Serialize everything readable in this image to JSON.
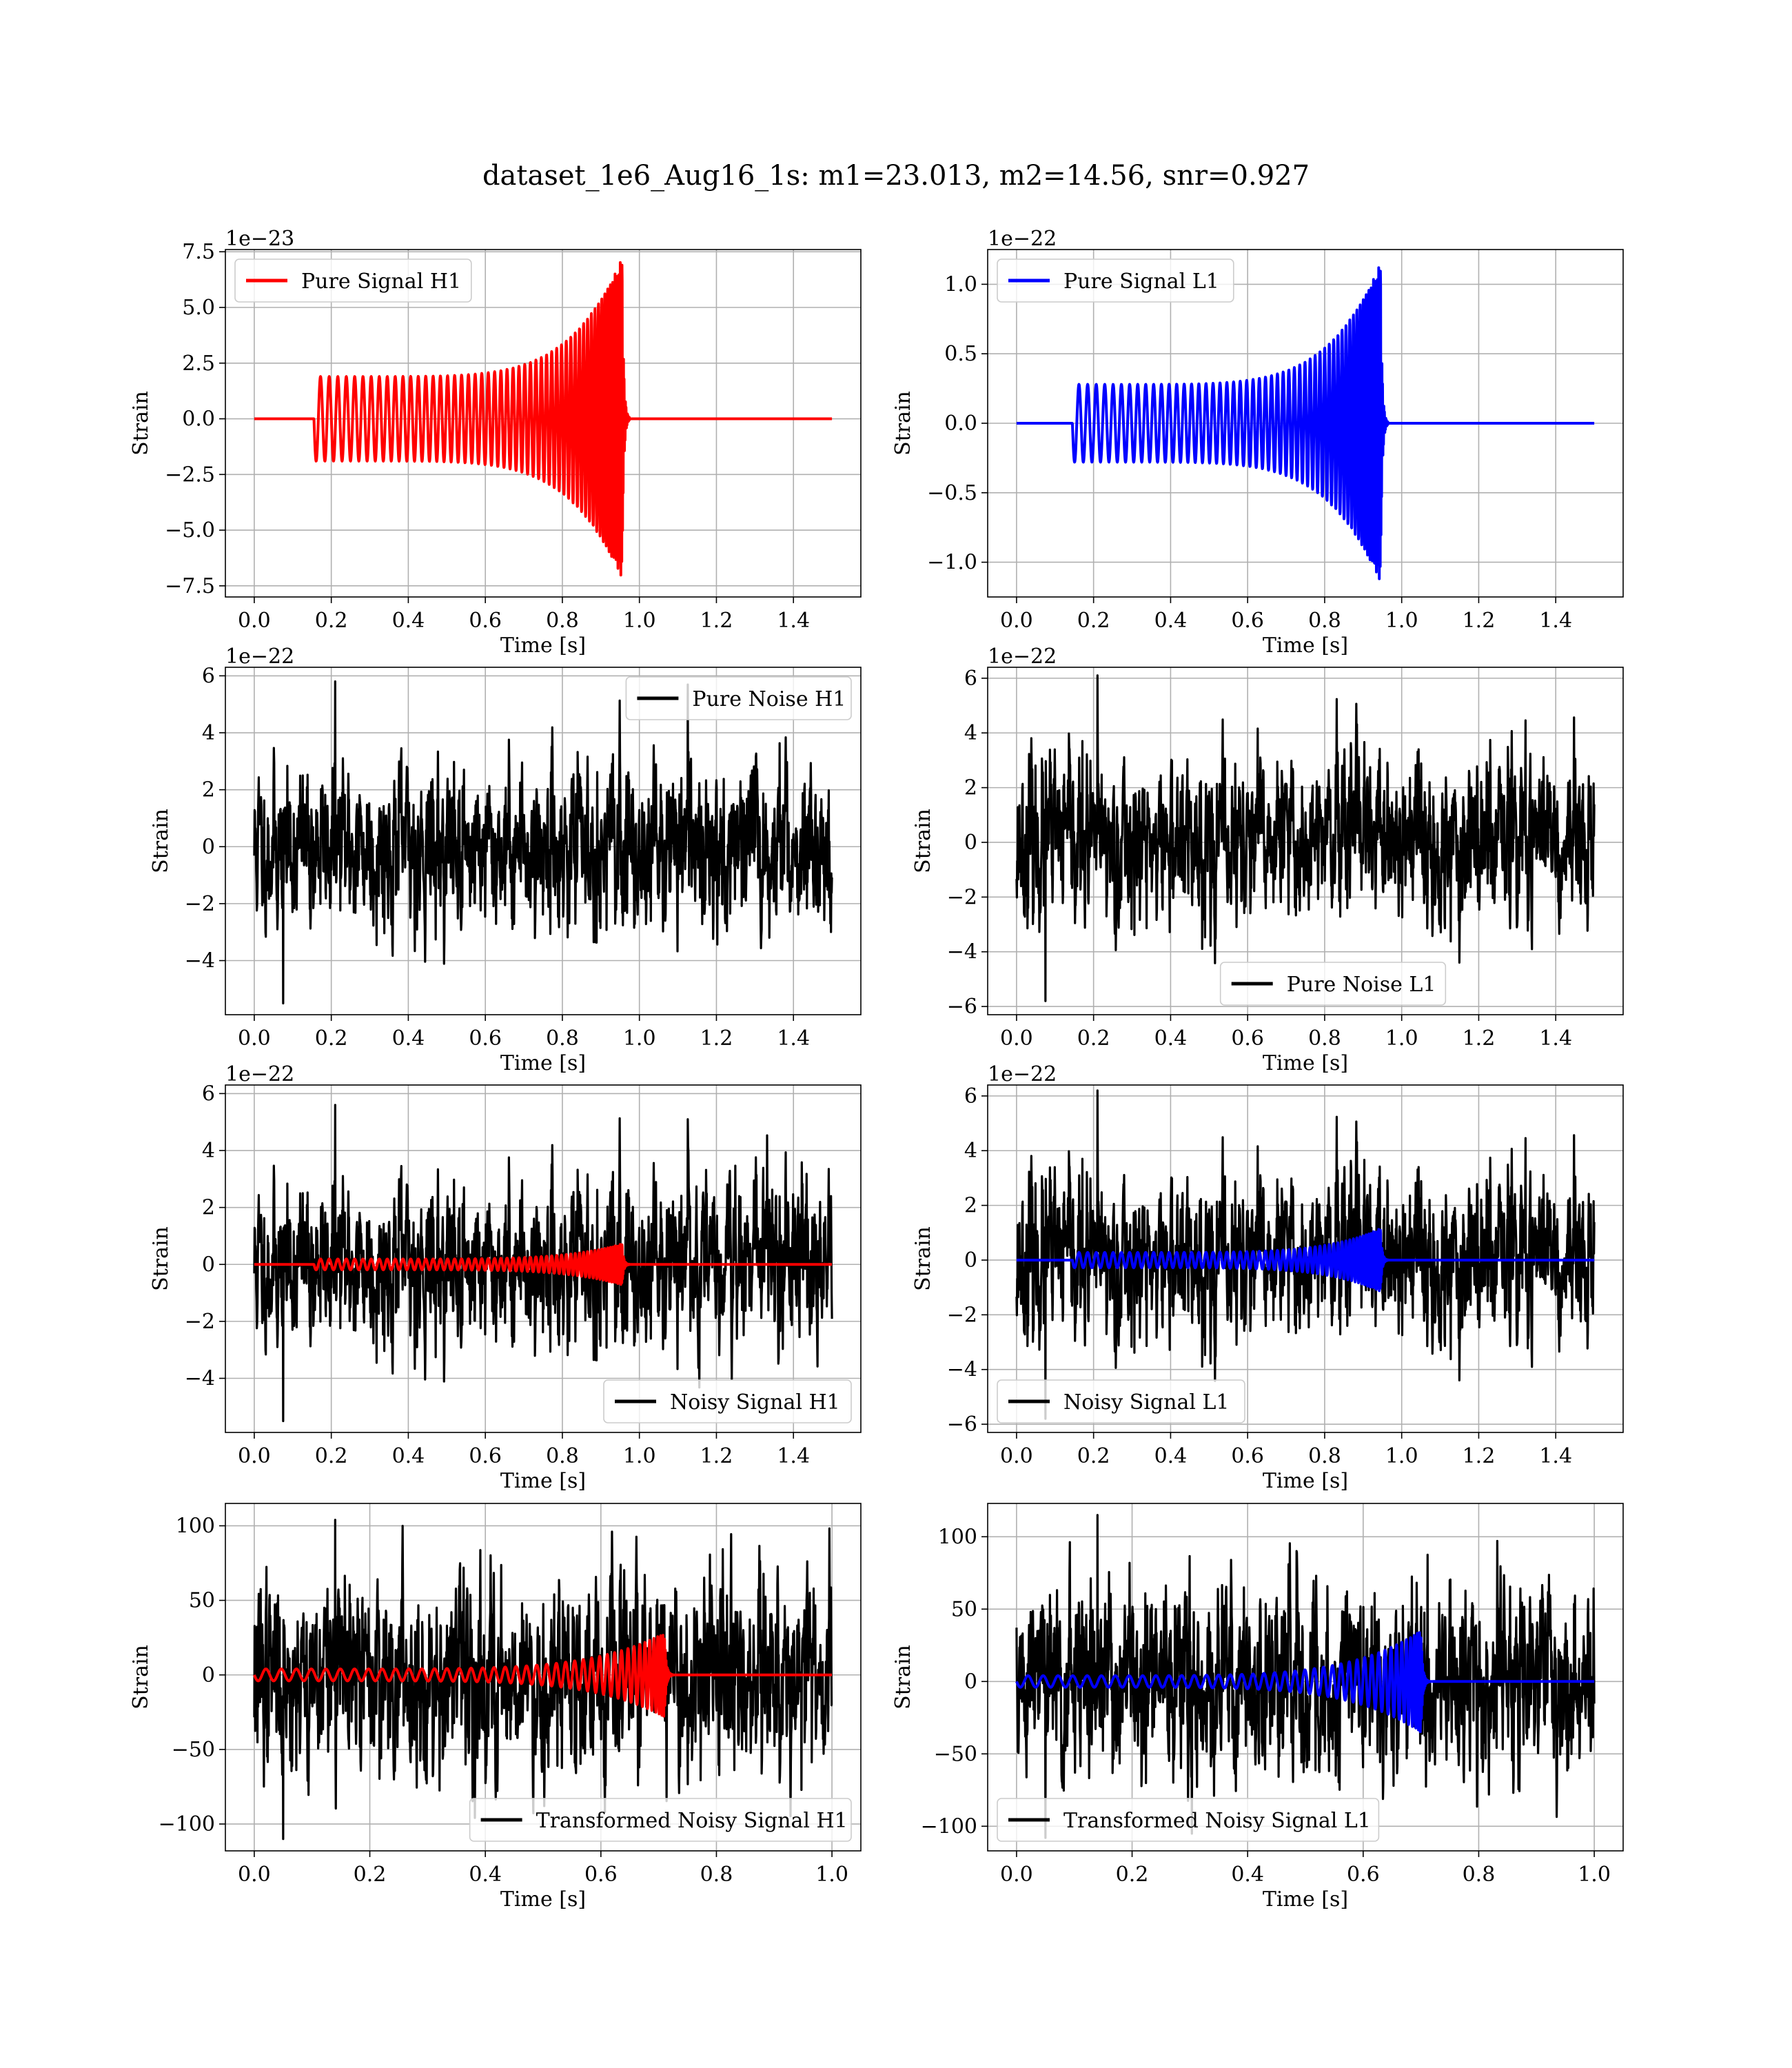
{
  "figure": {
    "suptitle": "dataset_1e6_Aug16_1s: m1=23.013, m2=14.56, snr=0.927"
  },
  "chart_data": [
    {
      "id": "pure-signal-h1",
      "type": "line",
      "kind": "signal",
      "detector": "H1",
      "xlabel": "Time [s]",
      "ylabel": "Strain",
      "offset_text": "1e−23",
      "xlim": [
        -0.075,
        1.575
      ],
      "ylim": [
        -8.0,
        7.6
      ],
      "xticks": [
        0.0,
        0.2,
        0.4,
        0.6,
        0.8,
        1.0,
        1.2,
        1.4
      ],
      "xtick_labels": [
        "0.0",
        "0.2",
        "0.4",
        "0.6",
        "0.8",
        "1.0",
        "1.2",
        "1.4"
      ],
      "yticks": [
        -7.5,
        -5.0,
        -2.5,
        0.0,
        2.5,
        5.0,
        7.5
      ],
      "ytick_labels": [
        "−7.5",
        "−5.0",
        "−2.5",
        "0.0",
        "2.5",
        "5.0",
        "7.5"
      ],
      "grid": true,
      "legend_position": "upper-left",
      "signal": {
        "start": 0.155,
        "merge": 0.955,
        "end_ringdown": 0.975,
        "amp_start": 1.9,
        "amp_peak": 7.2,
        "cycles": 56
      },
      "series": [
        {
          "name": "Pure Signal H1",
          "color": "#ff0000",
          "role": "signal"
        }
      ]
    },
    {
      "id": "pure-signal-l1",
      "type": "line",
      "kind": "signal",
      "detector": "L1",
      "xlabel": "Time [s]",
      "ylabel": "Strain",
      "offset_text": "1e−22",
      "xlim": [
        -0.075,
        1.575
      ],
      "ylim": [
        -1.25,
        1.25
      ],
      "xticks": [
        0.0,
        0.2,
        0.4,
        0.6,
        0.8,
        1.0,
        1.2,
        1.4
      ],
      "xtick_labels": [
        "0.0",
        "0.2",
        "0.4",
        "0.6",
        "0.8",
        "1.0",
        "1.2",
        "1.4"
      ],
      "yticks": [
        -1.0,
        -0.5,
        0.0,
        0.5,
        1.0
      ],
      "ytick_labels": [
        "−1.0",
        "−0.5",
        "0.0",
        "0.5",
        "1.0"
      ],
      "grid": true,
      "legend_position": "upper-left",
      "signal": {
        "start": 0.145,
        "merge": 0.945,
        "end_ringdown": 0.965,
        "amp_start": 0.28,
        "amp_peak": 1.15,
        "cycles": 56
      },
      "series": [
        {
          "name": "Pure Signal L1",
          "color": "#0000ff",
          "role": "signal"
        }
      ]
    },
    {
      "id": "pure-noise-h1",
      "type": "line",
      "kind": "noise",
      "detector": "H1",
      "xlabel": "Time [s]",
      "ylabel": "Strain",
      "offset_text": "1e−22",
      "xlim": [
        -0.075,
        1.575
      ],
      "ylim": [
        -5.9,
        6.3
      ],
      "xticks": [
        0.0,
        0.2,
        0.4,
        0.6,
        0.8,
        1.0,
        1.2,
        1.4
      ],
      "xtick_labels": [
        "0.0",
        "0.2",
        "0.4",
        "0.6",
        "0.8",
        "1.0",
        "1.2",
        "1.4"
      ],
      "yticks": [
        -4,
        -2,
        0,
        2,
        4,
        6
      ],
      "ytick_labels": [
        "−4",
        "−2",
        "0",
        "2",
        "4",
        "6"
      ],
      "grid": true,
      "legend_position": "upper-right",
      "noise": {
        "x_end": 1.5,
        "std": 1.45,
        "max": 5.8,
        "min": -5.5,
        "seed": 11
      },
      "series": [
        {
          "name": "Pure Noise H1",
          "color": "#000000",
          "role": "noise"
        }
      ]
    },
    {
      "id": "pure-noise-l1",
      "type": "line",
      "kind": "noise",
      "detector": "L1",
      "xlabel": "Time [s]",
      "ylabel": "Strain",
      "offset_text": "1e−22",
      "xlim": [
        -0.075,
        1.575
      ],
      "ylim": [
        -6.3,
        6.4
      ],
      "xticks": [
        0.0,
        0.2,
        0.4,
        0.6,
        0.8,
        1.0,
        1.2,
        1.4
      ],
      "xtick_labels": [
        "0.0",
        "0.2",
        "0.4",
        "0.6",
        "0.8",
        "1.0",
        "1.2",
        "1.4"
      ],
      "yticks": [
        -6,
        -4,
        -2,
        0,
        2,
        4,
        6
      ],
      "ytick_labels": [
        "−6",
        "−4",
        "−2",
        "0",
        "2",
        "4",
        "6"
      ],
      "grid": true,
      "legend_position": "lower-center",
      "noise": {
        "x_end": 1.5,
        "std": 1.55,
        "max": 6.1,
        "min": -5.8,
        "seed": 23
      },
      "series": [
        {
          "name": "Pure Noise L1",
          "color": "#000000",
          "role": "noise"
        }
      ]
    },
    {
      "id": "noisy-signal-h1",
      "type": "line",
      "kind": "noisy",
      "detector": "H1",
      "xlabel": "Time [s]",
      "ylabel": "Strain",
      "offset_text": "1e−22",
      "xlim": [
        -0.075,
        1.575
      ],
      "ylim": [
        -5.9,
        6.3
      ],
      "xticks": [
        0.0,
        0.2,
        0.4,
        0.6,
        0.8,
        1.0,
        1.2,
        1.4
      ],
      "xtick_labels": [
        "0.0",
        "0.2",
        "0.4",
        "0.6",
        "0.8",
        "1.0",
        "1.2",
        "1.4"
      ],
      "yticks": [
        -4,
        -2,
        0,
        2,
        4,
        6
      ],
      "ytick_labels": [
        "−4",
        "−2",
        "0",
        "2",
        "4",
        "6"
      ],
      "grid": true,
      "legend_position": "lower-right",
      "noise": {
        "x_end": 1.5,
        "std": 1.45,
        "max": 5.6,
        "min": -5.5,
        "seed": 11
      },
      "signal": {
        "start": 0.155,
        "merge": 0.955,
        "end_ringdown": 0.975,
        "amp_start": 0.19,
        "amp_peak": 0.72,
        "cycles": 56
      },
      "series": [
        {
          "name": "Noisy Signal H1",
          "color": "#000000",
          "role": "noise"
        },
        {
          "color": "#ff0000",
          "role": "signal"
        }
      ]
    },
    {
      "id": "noisy-signal-l1",
      "type": "line",
      "kind": "noisy",
      "detector": "L1",
      "xlabel": "Time [s]",
      "ylabel": "Strain",
      "offset_text": "1e−22",
      "xlim": [
        -0.075,
        1.575
      ],
      "ylim": [
        -6.3,
        6.4
      ],
      "xticks": [
        0.0,
        0.2,
        0.4,
        0.6,
        0.8,
        1.0,
        1.2,
        1.4
      ],
      "xtick_labels": [
        "0.0",
        "0.2",
        "0.4",
        "0.6",
        "0.8",
        "1.0",
        "1.2",
        "1.4"
      ],
      "yticks": [
        -6,
        -4,
        -2,
        0,
        2,
        4,
        6
      ],
      "ytick_labels": [
        "−6",
        "−4",
        "−2",
        "0",
        "2",
        "4",
        "6"
      ],
      "grid": true,
      "legend_position": "lower-left",
      "noise": {
        "x_end": 1.5,
        "std": 1.55,
        "max": 6.2,
        "min": -5.8,
        "seed": 23
      },
      "signal": {
        "start": 0.145,
        "merge": 0.945,
        "end_ringdown": 0.965,
        "amp_start": 0.28,
        "amp_peak": 1.15,
        "cycles": 56
      },
      "series": [
        {
          "name": "Noisy Signal L1",
          "color": "#000000",
          "role": "noise"
        },
        {
          "color": "#0000ff",
          "role": "signal"
        }
      ]
    },
    {
      "id": "transformed-h1",
      "type": "line",
      "kind": "noisy",
      "detector": "H1",
      "xlabel": "Time [s]",
      "ylabel": "Strain",
      "offset_text": "",
      "xlim": [
        -0.05,
        1.05
      ],
      "ylim": [
        -118,
        115
      ],
      "xticks": [
        0.0,
        0.2,
        0.4,
        0.6,
        0.8,
        1.0
      ],
      "xtick_labels": [
        "0.0",
        "0.2",
        "0.4",
        "0.6",
        "0.8",
        "1.0"
      ],
      "yticks": [
        -100,
        -50,
        0,
        50,
        100
      ],
      "ytick_labels": [
        "−100",
        "−50",
        "0",
        "50",
        "100"
      ],
      "grid": true,
      "legend_position": "lower-right",
      "noise": {
        "x_end": 1.0,
        "std": 33,
        "max": 104,
        "min": -110,
        "seed": 37
      },
      "signal": {
        "start": 0.0,
        "merge": 0.71,
        "end_ringdown": 0.725,
        "amp_start": 4,
        "amp_peak": 28,
        "cycles": 42
      },
      "series": [
        {
          "name": "Transformed Noisy Signal H1",
          "color": "#000000",
          "role": "noise"
        },
        {
          "color": "#ff0000",
          "role": "signal"
        }
      ]
    },
    {
      "id": "transformed-l1",
      "type": "line",
      "kind": "noisy",
      "detector": "L1",
      "xlabel": "Time [s]",
      "ylabel": "Strain",
      "offset_text": "",
      "xlim": [
        -0.05,
        1.05
      ],
      "ylim": [
        -117,
        123
      ],
      "xticks": [
        0.0,
        0.2,
        0.4,
        0.6,
        0.8,
        1.0
      ],
      "xtick_labels": [
        "0.0",
        "0.2",
        "0.4",
        "0.6",
        "0.8",
        "1.0"
      ],
      "yticks": [
        -100,
        -50,
        0,
        50,
        100
      ],
      "ytick_labels": [
        "−100",
        "−50",
        "0",
        "50",
        "100"
      ],
      "grid": true,
      "legend_position": "lower-left",
      "noise": {
        "x_end": 1.0,
        "std": 35,
        "max": 115,
        "min": -108,
        "seed": 51
      },
      "signal": {
        "start": 0.0,
        "merge": 0.7,
        "end_ringdown": 0.715,
        "amp_start": 4,
        "amp_peak": 35,
        "cycles": 42
      },
      "series": [
        {
          "name": "Transformed Noisy Signal L1",
          "color": "#000000",
          "role": "noise"
        },
        {
          "color": "#0000ff",
          "role": "signal"
        }
      ]
    }
  ]
}
